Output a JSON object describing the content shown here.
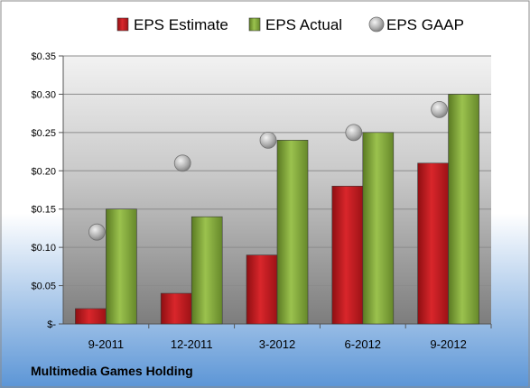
{
  "chart_data": {
    "type": "bar",
    "categories": [
      "9-2011",
      "12-2011",
      "3-2012",
      "6-2012",
      "9-2012"
    ],
    "series": [
      {
        "name": "EPS Estimate",
        "kind": "bar",
        "color": "#c8161d",
        "values": [
          0.02,
          0.04,
          0.09,
          0.18,
          0.21
        ]
      },
      {
        "name": "EPS Actual",
        "kind": "bar",
        "color": "#7fa33a",
        "values": [
          0.15,
          0.14,
          0.24,
          0.25,
          0.3
        ]
      },
      {
        "name": "EPS GAAP",
        "kind": "scatter",
        "color": "#a6a6a6",
        "values": [
          0.12,
          0.21,
          0.24,
          0.25,
          0.28
        ]
      }
    ],
    "yticks": [
      "$-",
      "$0.05",
      "$0.10",
      "$0.15",
      "$0.20",
      "$0.25",
      "$0.30",
      "$0.35"
    ],
    "ylim": [
      0,
      0.35
    ],
    "grid": true,
    "legend": "top"
  },
  "footer": "Multimedia Games Holding"
}
